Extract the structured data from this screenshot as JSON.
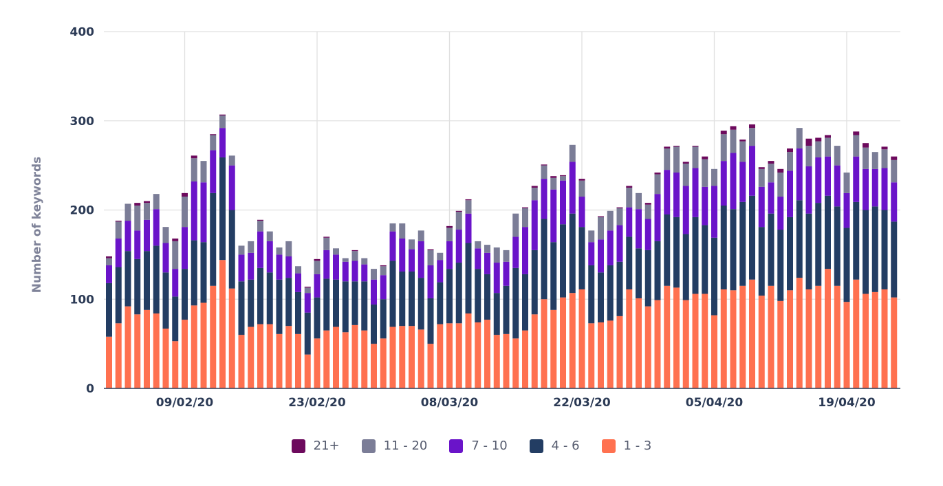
{
  "chart_data": {
    "type": "bar",
    "stacked": true,
    "title": "",
    "xlabel": "",
    "ylabel": "Number of keywords",
    "ylim": [
      0,
      400
    ],
    "y_ticks": [
      0,
      100,
      200,
      300,
      400
    ],
    "grid": true,
    "legend_position": "bottom",
    "x_tick_labels": [
      "09/02/20",
      "23/02/20",
      "08/03/20",
      "22/03/20",
      "05/04/20",
      "19/04/20"
    ],
    "categories": [
      "01/02/20",
      "02/02/20",
      "03/02/20",
      "04/02/20",
      "05/02/20",
      "06/02/20",
      "07/02/20",
      "08/02/20",
      "09/02/20",
      "10/02/20",
      "11/02/20",
      "12/02/20",
      "13/02/20",
      "14/02/20",
      "15/02/20",
      "16/02/20",
      "17/02/20",
      "18/02/20",
      "19/02/20",
      "20/02/20",
      "21/02/20",
      "22/02/20",
      "23/02/20",
      "24/02/20",
      "25/02/20",
      "26/02/20",
      "27/02/20",
      "28/02/20",
      "29/02/20",
      "01/03/20",
      "02/03/20",
      "03/03/20",
      "04/03/20",
      "05/03/20",
      "06/03/20",
      "07/03/20",
      "08/03/20",
      "09/03/20",
      "10/03/20",
      "11/03/20",
      "12/03/20",
      "13/03/20",
      "14/03/20",
      "15/03/20",
      "16/03/20",
      "17/03/20",
      "18/03/20",
      "19/03/20",
      "20/03/20",
      "21/03/20",
      "22/03/20",
      "23/03/20",
      "24/03/20",
      "25/03/20",
      "26/03/20",
      "27/03/20",
      "28/03/20",
      "29/03/20",
      "30/03/20",
      "31/03/20",
      "01/04/20",
      "02/04/20",
      "03/04/20",
      "04/04/20",
      "05/04/20",
      "06/04/20",
      "07/04/20",
      "08/04/20",
      "09/04/20",
      "10/04/20",
      "11/04/20",
      "12/04/20",
      "13/04/20",
      "14/04/20",
      "15/04/20",
      "16/04/20",
      "17/04/20",
      "18/04/20",
      "19/04/20",
      "20/04/20",
      "21/04/20",
      "22/04/20",
      "23/04/20",
      "24/04/20"
    ],
    "series": [
      {
        "name": "1 - 3",
        "color": "#ff7150",
        "values": [
          58,
          73,
          92,
          83,
          88,
          84,
          67,
          53,
          77,
          93,
          96,
          115,
          144,
          112,
          60,
          69,
          72,
          72,
          61,
          70,
          61,
          38,
          56,
          65,
          69,
          63,
          71,
          65,
          50,
          56,
          69,
          70,
          70,
          66,
          50,
          72,
          73,
          73,
          84,
          74,
          77,
          60,
          61,
          56,
          65,
          83,
          100,
          88,
          102,
          107,
          111,
          73,
          74,
          76,
          81,
          111,
          101,
          92,
          99,
          115,
          113,
          99,
          106,
          106,
          82,
          111,
          110,
          115,
          122,
          104,
          115,
          98,
          110,
          124,
          111,
          115,
          134,
          115,
          97,
          122,
          106,
          108,
          111,
          102
        ]
      },
      {
        "name": "4 - 6",
        "color": "#233d63",
        "values": [
          60,
          63,
          62,
          62,
          66,
          76,
          63,
          50,
          57,
          73,
          68,
          104,
          115,
          88,
          60,
          53,
          63,
          58,
          61,
          54,
          47,
          47,
          46,
          58,
          53,
          57,
          49,
          55,
          44,
          44,
          74,
          61,
          61,
          58,
          51,
          47,
          61,
          68,
          79,
          60,
          51,
          47,
          54,
          79,
          63,
          72,
          90,
          76,
          82,
          89,
          70,
          65,
          56,
          62,
          61,
          59,
          56,
          63,
          66,
          80,
          79,
          74,
          86,
          77,
          87,
          94,
          91,
          94,
          94,
          77,
          81,
          80,
          82,
          87,
          85,
          93,
          82,
          89,
          83,
          87,
          94,
          96,
          89,
          85
        ]
      },
      {
        "name": "7 - 10",
        "color": "#6a14c9",
        "values": [
          20,
          32,
          34,
          32,
          35,
          41,
          33,
          31,
          47,
          66,
          67,
          48,
          33,
          50,
          30,
          30,
          41,
          35,
          28,
          24,
          21,
          22,
          26,
          32,
          28,
          22,
          23,
          19,
          28,
          27,
          33,
          37,
          25,
          41,
          37,
          25,
          31,
          37,
          33,
          23,
          24,
          34,
          27,
          35,
          53,
          56,
          45,
          59,
          49,
          58,
          34,
          26,
          37,
          39,
          41,
          33,
          44,
          35,
          53,
          50,
          50,
          54,
          55,
          43,
          58,
          50,
          63,
          45,
          56,
          45,
          35,
          37,
          52,
          58,
          53,
          51,
          44,
          46,
          39,
          51,
          46,
          42,
          47,
          44
        ]
      },
      {
        "name": "11 - 20",
        "color": "#7b7d97",
        "values": [
          8,
          19,
          19,
          28,
          19,
          17,
          18,
          31,
          34,
          26,
          24,
          17,
          14,
          11,
          10,
          13,
          12,
          11,
          8,
          17,
          8,
          6,
          15,
          14,
          7,
          4,
          11,
          7,
          12,
          10,
          9,
          17,
          11,
          12,
          17,
          8,
          15,
          20,
          15,
          8,
          9,
          17,
          13,
          26,
          21,
          14,
          15,
          13,
          5,
          19,
          18,
          13,
          25,
          22,
          19,
          22,
          18,
          16,
          22,
          24,
          29,
          25,
          24,
          31,
          19,
          30,
          26,
          23,
          20,
          20,
          21,
          27,
          21,
          23,
          23,
          18,
          21,
          22,
          23,
          24,
          24,
          19,
          21,
          25
        ]
      },
      {
        "name": "21+",
        "color": "#6d0a5d",
        "values": [
          2,
          1,
          0,
          3,
          2,
          0,
          0,
          3,
          4,
          3,
          0,
          1,
          1,
          0,
          0,
          0,
          1,
          0,
          0,
          0,
          0,
          1,
          2,
          1,
          0,
          0,
          1,
          0,
          0,
          1,
          0,
          0,
          0,
          0,
          1,
          0,
          2,
          1,
          1,
          0,
          0,
          0,
          0,
          0,
          1,
          2,
          1,
          2,
          1,
          0,
          2,
          0,
          1,
          0,
          1,
          2,
          0,
          2,
          2,
          2,
          1,
          2,
          1,
          3,
          0,
          4,
          4,
          2,
          4,
          2,
          3,
          4,
          4,
          0,
          8,
          4,
          3,
          0,
          0,
          4,
          5,
          0,
          3,
          4
        ]
      }
    ],
    "legend_order": [
      "21+",
      "11 - 20",
      "7 - 10",
      "4 - 6",
      "1 - 3"
    ]
  }
}
